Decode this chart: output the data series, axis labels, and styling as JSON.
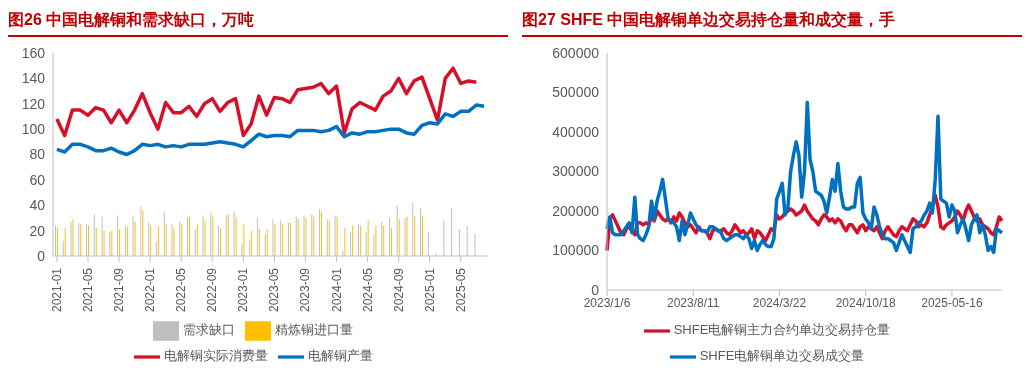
{
  "chart_data": [
    {
      "type": "bar",
      "title": "图26  中国电解铜和需求缺口，万吨",
      "categories": [
        "2021-01",
        null,
        null,
        null,
        "2021-05",
        null,
        null,
        null,
        "2021-09",
        null,
        null,
        null,
        "2022-01",
        null,
        null,
        null,
        "2022-05",
        null,
        null,
        null,
        "2022-09",
        null,
        null,
        null,
        "2023-01",
        null,
        null,
        null,
        "2023-05",
        null,
        null,
        null,
        "2023-09",
        null,
        null,
        null,
        "2024-01",
        null,
        null,
        null,
        "2024-05",
        null,
        null,
        null,
        "2024-09",
        null,
        null,
        null,
        "2025-01",
        null,
        null,
        null,
        "2025-05",
        null,
        null,
        null
      ],
      "series": [
        {
          "name": "需求缺口",
          "type": "bar",
          "color": "#bfbfbf",
          "values": [
            24,
            12,
            27,
            26,
            25,
            33,
            31,
            19,
            32,
            23,
            31,
            39,
            27,
            11,
            35,
            25,
            27,
            30,
            21,
            32,
            34,
            24,
            32,
            35,
            9,
            13,
            30,
            17,
            29,
            28,
            26,
            31,
            32,
            33,
            37,
            29,
            32,
            4,
            19,
            25,
            19,
            17,
            27,
            30,
            40,
            30,
            42,
            38,
            19,
            2,
            28,
            38,
            21,
            24,
            18,
            null
          ]
        },
        {
          "name": "精炼铜进口量",
          "type": "bar",
          "color": "#ffc000",
          "values": [
            22,
            22,
            29,
            25,
            24,
            22,
            20,
            20,
            21,
            23,
            27,
            36,
            24,
            23,
            25,
            22,
            25,
            31,
            25,
            28,
            31,
            22,
            33,
            31,
            25,
            20,
            21,
            21,
            25,
            25,
            26,
            29,
            30,
            31,
            35,
            28,
            31,
            22,
            24,
            24,
            28,
            24,
            24,
            22,
            29,
            31,
            32,
            32,
            null,
            null,
            null,
            null,
            null,
            null,
            null,
            null
          ]
        },
        {
          "name": "电解铜实际消费量",
          "type": "line",
          "color": "#d7102a",
          "values": [
            108,
            95,
            115,
            115,
            111,
            117,
            115,
            105,
            115,
            105,
            115,
            128,
            113,
            100,
            121,
            113,
            113,
            118,
            110,
            120,
            124,
            114,
            121,
            124,
            95,
            104,
            126,
            111,
            125,
            124,
            121,
            131,
            132,
            133,
            136,
            128,
            134,
            97,
            116,
            121,
            118,
            115,
            126,
            130,
            140,
            128,
            138,
            141,
            124,
            107,
            140,
            148,
            136,
            138,
            137,
            null
          ]
        },
        {
          "name": "电解铜产量",
          "type": "line",
          "color": "#0070c0",
          "values": [
            84,
            82,
            88,
            88,
            86,
            83,
            83,
            85,
            82,
            80,
            83,
            88,
            87,
            88,
            86,
            87,
            86,
            88,
            88,
            88,
            89,
            90,
            89,
            88,
            86,
            91,
            96,
            94,
            95,
            95,
            94,
            99,
            99,
            99,
            98,
            99,
            102,
            94,
            97,
            96,
            98,
            98,
            99,
            100,
            100,
            97,
            96,
            103,
            105,
            104,
            112,
            110,
            114,
            114,
            119,
            118
          ]
        }
      ],
      "ylim": [
        0,
        160
      ],
      "yticks": [
        0,
        20,
        40,
        60,
        80,
        100,
        120,
        140,
        160
      ],
      "legend": "bottom",
      "marker": "none",
      "line_style": "solid"
    },
    {
      "type": "line",
      "title": "图27  SHFE 中国电解铜单边交易持仓量和成交量，手",
      "categories": [
        "2023/1/6",
        null,
        null,
        null,
        null,
        null,
        null,
        null,
        null,
        null,
        null,
        null,
        null,
        null,
        null,
        null,
        null,
        null,
        null,
        null,
        null,
        null,
        null,
        null,
        null,
        null,
        null,
        null,
        null,
        null,
        null,
        "2023/8/11",
        null,
        null,
        null,
        null,
        null,
        null,
        null,
        null,
        null,
        null,
        null,
        null,
        null,
        null,
        null,
        null,
        null,
        null,
        null,
        null,
        null,
        null,
        null,
        null,
        null,
        null,
        null,
        null,
        null,
        null,
        "2024/3/22",
        null,
        null,
        null,
        null,
        null,
        null,
        null,
        null,
        null,
        null,
        null,
        null,
        null,
        null,
        null,
        null,
        null,
        null,
        null,
        null,
        null,
        null,
        null,
        null,
        null,
        null,
        null,
        null,
        null,
        null,
        "2024/10/18",
        null,
        null,
        null,
        null,
        null,
        null,
        null,
        null,
        null,
        null,
        null,
        null,
        null,
        null,
        null,
        null,
        null,
        null,
        null,
        null,
        null,
        null,
        null,
        null,
        null,
        null,
        null,
        null,
        null,
        null,
        "2025-05-16",
        null,
        null,
        null,
        null,
        null,
        null,
        null,
        null,
        null,
        null,
        null,
        null,
        null,
        null,
        null,
        null,
        null,
        null
      ],
      "series": [
        {
          "name": "SHFE电解铜主力合约单边交易持仓量",
          "color": "#d7102a",
          "values": [
            100000,
            180000,
            190000,
            175000,
            160000,
            145000,
            140000,
            155000,
            160000,
            150000,
            140000,
            170000,
            170000,
            165000,
            170000,
            165000,
            185000,
            175000,
            200000,
            190000,
            180000,
            175000,
            180000,
            170000,
            185000,
            175000,
            195000,
            185000,
            170000,
            160000,
            165000,
            155000,
            145000,
            160000,
            150000,
            150000,
            145000,
            130000,
            150000,
            155000,
            150000,
            150000,
            155000,
            145000,
            140000,
            150000,
            165000,
            155000,
            145000,
            150000,
            140000,
            145000,
            155000,
            130000,
            150000,
            145000,
            135000,
            125000,
            140000,
            155000,
            150000,
            190000,
            180000,
            185000,
            195000,
            200000,
            205000,
            200000,
            190000,
            195000,
            200000,
            215000,
            200000,
            190000,
            180000,
            175000,
            165000,
            180000,
            190000,
            185000,
            175000,
            180000,
            170000,
            180000,
            175000,
            160000,
            150000,
            165000,
            165000,
            155000,
            145000,
            160000,
            165000,
            150000,
            160000,
            155000,
            150000,
            160000,
            145000,
            130000,
            150000,
            160000,
            150000,
            140000,
            135000,
            150000,
            160000,
            155000,
            150000,
            165000,
            180000,
            175000,
            160000,
            165000,
            160000,
            170000,
            190000,
            210000,
            240000,
            210000,
            160000,
            155000,
            165000,
            170000,
            175000,
            185000,
            200000,
            190000,
            175000,
            200000,
            215000,
            200000,
            185000,
            175000,
            180000,
            165000,
            160000,
            155000,
            145000,
            140000,
            160000,
            185000,
            175000
          ]
        },
        {
          "name": "SHFE电解铜单边交易成交量",
          "color": "#0070c0",
          "values": [
            155000,
            185000,
            145000,
            140000,
            140000,
            140000,
            150000,
            160000,
            170000,
            145000,
            235000,
            140000,
            130000,
            125000,
            140000,
            160000,
            225000,
            180000,
            225000,
            250000,
            280000,
            230000,
            180000,
            175000,
            170000,
            160000,
            125000,
            175000,
            140000,
            165000,
            195000,
            180000,
            165000,
            155000,
            150000,
            150000,
            145000,
            160000,
            160000,
            155000,
            150000,
            145000,
            130000,
            125000,
            130000,
            135000,
            140000,
            140000,
            135000,
            130000,
            140000,
            130000,
            105000,
            125000,
            100000,
            115000,
            125000,
            115000,
            110000,
            110000,
            130000,
            230000,
            250000,
            270000,
            190000,
            205000,
            300000,
            340000,
            375000,
            340000,
            235000,
            300000,
            475000,
            330000,
            300000,
            250000,
            245000,
            240000,
            225000,
            195000,
            235000,
            280000,
            250000,
            320000,
            250000,
            210000,
            205000,
            205000,
            210000,
            210000,
            270000,
            285000,
            195000,
            180000,
            170000,
            155000,
            210000,
            190000,
            160000,
            140000,
            130000,
            130000,
            125000,
            120000,
            100000,
            120000,
            140000,
            125000,
            110000,
            95000,
            155000,
            160000,
            170000,
            175000,
            190000,
            200000,
            220000,
            195000,
            280000,
            440000,
            230000,
            225000,
            220000,
            185000,
            215000,
            200000,
            145000,
            165000,
            180000,
            155000,
            125000,
            165000,
            180000,
            190000,
            145000,
            165000,
            140000,
            100000,
            110000,
            95000,
            155000,
            150000,
            145000
          ]
        }
      ],
      "ylim": [
        0,
        600000
      ],
      "yticks": [
        0,
        100000,
        200000,
        300000,
        400000,
        500000,
        600000
      ],
      "legend": "bottom",
      "marker": "none",
      "line_style": "solid"
    }
  ]
}
